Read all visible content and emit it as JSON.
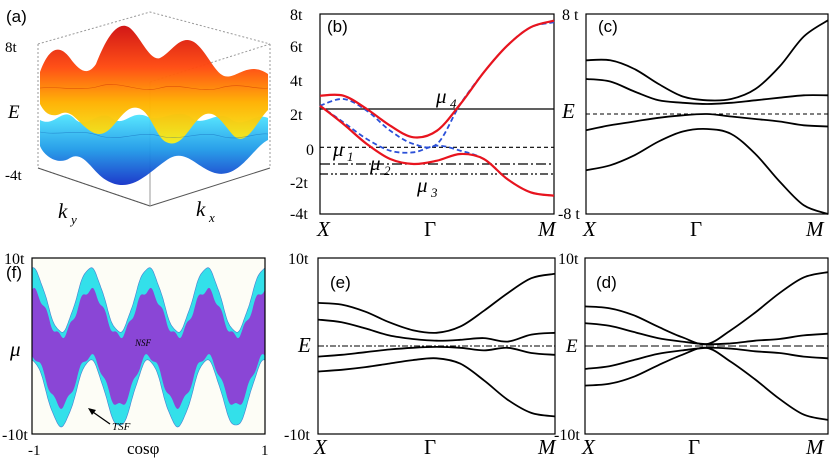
{
  "panels": {
    "a": {
      "label": "(a)",
      "ytick_top": "8t",
      "ytick_bottom": "-4t",
      "ylabel": "E",
      "xlabel_left": "k",
      "xlabel_left_sub": "y",
      "xlabel_right": "k",
      "xlabel_right_sub": "x"
    },
    "b": {
      "label": "(b)",
      "yticks": [
        "8t",
        "6t",
        "4t",
        "2t",
        "0",
        "-2t",
        "-4t"
      ],
      "xticks": [
        "X",
        "Γ",
        "M"
      ],
      "annotations": {
        "mu1": "μ",
        "mu1_sub": "1",
        "mu2": "μ",
        "mu2_sub": "2",
        "mu3": "μ",
        "mu3_sub": "3",
        "mu4": "μ",
        "mu4_sub": "4"
      }
    },
    "c": {
      "label": "(c)",
      "ytick_top": "8 t",
      "ytick_bottom": "-8 t",
      "ylabel": "E",
      "xticks": [
        "X",
        "Γ",
        "M"
      ]
    },
    "d": {
      "label": "(d)",
      "ytick_top": "10t",
      "ytick_bottom": "-10t",
      "ylabel": "E",
      "xticks": [
        "X",
        "Γ",
        "M"
      ]
    },
    "e": {
      "label": "(e)",
      "ytick_top": "10t",
      "ytick_bottom": "-10t",
      "ylabel": "E",
      "xticks": [
        "X",
        "Γ",
        "M"
      ]
    },
    "f": {
      "label": "(f)",
      "ytick_top": "10t",
      "ytick_bottom": "-10t",
      "ylabel": "μ",
      "xticks": [
        "-1",
        "cosφ",
        "1"
      ],
      "region_nsf": "NSF",
      "region_tsf": "TSF"
    }
  },
  "colors": {
    "band_red": "#e8141e",
    "band_blue": "#2b50d8",
    "tsf_cyan": "#33e0ea",
    "nsf_purple": "#8a46d6"
  },
  "chart_data": [
    {
      "panel": "b",
      "type": "line",
      "x_ticks": [
        "X",
        "Γ",
        "M"
      ],
      "ylim": [
        -4,
        8
      ],
      "yticks": [
        8,
        6,
        4,
        2,
        0,
        -2,
        -4
      ],
      "series": [
        {
          "name": "red upper",
          "x": [
            0,
            0.1,
            0.2,
            0.3,
            0.4,
            0.5,
            0.6,
            0.7,
            0.8,
            0.9,
            1.0
          ],
          "values": [
            3.1,
            3.1,
            2.3,
            1.3,
            0.6,
            1.0,
            2.6,
            4.5,
            6.1,
            7.2,
            7.6
          ]
        },
        {
          "name": "red lower",
          "x": [
            0,
            0.1,
            0.2,
            0.3,
            0.4,
            0.5,
            0.6,
            0.7,
            0.8,
            0.9,
            1.0
          ],
          "values": [
            2.5,
            1.4,
            0.2,
            -0.7,
            -1.0,
            -0.8,
            -0.4,
            -0.7,
            -1.9,
            -2.7,
            -2.9
          ]
        },
        {
          "name": "blue dashed upper",
          "x": [
            0,
            0.1,
            0.2,
            0.3,
            0.4,
            0.5,
            0.6,
            0.7,
            0.8,
            0.9,
            1.0
          ],
          "values": [
            2.5,
            2.9,
            2.2,
            1.0,
            0.2,
            0.2,
            2.6,
            4.5,
            6.1,
            7.2,
            7.5
          ]
        },
        {
          "name": "blue dashed lower",
          "x": [
            0,
            0.1,
            0.2,
            0.3,
            0.4,
            0.5,
            0.6,
            0.7,
            0.8,
            0.9,
            1.0
          ],
          "values": [
            2.5,
            1.5,
            0.5,
            -0.2,
            -0.3,
            0.1,
            -0.2,
            -0.7,
            -1.9,
            -2.7,
            -2.9
          ]
        }
      ],
      "levels": [
        {
          "name": "μ4",
          "value": 2.3,
          "style": "solid"
        },
        {
          "name": "μ1",
          "value": 0.0,
          "style": "dashed"
        },
        {
          "name": "μ2",
          "value": -1.0,
          "style": "dash-dot"
        },
        {
          "name": "μ3",
          "value": -1.6,
          "style": "dash-dot-dot"
        }
      ]
    },
    {
      "panel": "c",
      "type": "line",
      "x_ticks": [
        "X",
        "Γ",
        "M"
      ],
      "ylim": [
        -8,
        8
      ],
      "reference_line": 0,
      "series": [
        {
          "name": "band 1",
          "x": [
            0,
            0.1,
            0.2,
            0.3,
            0.4,
            0.5,
            0.6,
            0.7,
            0.8,
            0.9,
            1.0
          ],
          "values": [
            4.3,
            4.3,
            3.6,
            2.4,
            1.4,
            1.1,
            1.2,
            2.0,
            3.8,
            6.2,
            7.5
          ]
        },
        {
          "name": "band 2",
          "x": [
            0,
            0.1,
            0.2,
            0.3,
            0.4,
            0.5,
            0.6,
            0.7,
            0.8,
            0.9,
            1.0
          ],
          "values": [
            2.8,
            2.6,
            1.8,
            1.1,
            0.9,
            0.8,
            0.9,
            1.1,
            1.3,
            1.5,
            1.5
          ]
        },
        {
          "name": "band 3",
          "x": [
            0,
            0.1,
            0.2,
            0.3,
            0.4,
            0.5,
            0.6,
            0.7,
            0.8,
            0.9,
            1.0
          ],
          "values": [
            -1.3,
            -0.9,
            -0.6,
            -0.3,
            -0.1,
            0.0,
            -0.2,
            -0.4,
            -0.6,
            -0.9,
            -1.0
          ]
        },
        {
          "name": "band 4",
          "x": [
            0,
            0.1,
            0.2,
            0.3,
            0.4,
            0.5,
            0.6,
            0.7,
            0.8,
            0.9,
            1.0
          ],
          "values": [
            -4.5,
            -4.1,
            -3.3,
            -2.2,
            -1.4,
            -1.2,
            -1.6,
            -3.2,
            -5.4,
            -7.3,
            -8.0
          ]
        }
      ]
    },
    {
      "panel": "d",
      "type": "line",
      "x_ticks": [
        "X",
        "Γ",
        "M"
      ],
      "ylim": [
        -10,
        10
      ],
      "reference_line": 0,
      "series": [
        {
          "name": "band 1",
          "x": [
            0,
            0.1,
            0.2,
            0.3,
            0.4,
            0.5,
            0.6,
            0.7,
            0.8,
            0.9,
            1.0
          ],
          "values": [
            4.5,
            4.3,
            3.5,
            2.2,
            1.0,
            0.2,
            1.8,
            3.8,
            6.0,
            7.8,
            8.4
          ]
        },
        {
          "name": "band 2",
          "x": [
            0,
            0.1,
            0.2,
            0.3,
            0.4,
            0.5,
            0.6,
            0.7,
            0.8,
            0.9,
            1.0
          ],
          "values": [
            2.6,
            2.3,
            1.6,
            0.9,
            0.5,
            0.2,
            0.3,
            0.6,
            0.8,
            1.2,
            1.4
          ]
        },
        {
          "name": "band 3",
          "x": [
            0,
            0.1,
            0.2,
            0.3,
            0.4,
            0.5,
            0.6,
            0.7,
            0.8,
            0.9,
            1.0
          ],
          "values": [
            -2.6,
            -2.3,
            -1.6,
            -0.9,
            -0.5,
            -0.2,
            -0.3,
            -0.6,
            -0.8,
            -1.2,
            -1.4
          ]
        },
        {
          "name": "band 4",
          "x": [
            0,
            0.1,
            0.2,
            0.3,
            0.4,
            0.5,
            0.6,
            0.7,
            0.8,
            0.9,
            1.0
          ],
          "values": [
            -4.5,
            -4.3,
            -3.5,
            -2.2,
            -1.0,
            -0.2,
            -1.8,
            -3.8,
            -6.0,
            -7.8,
            -8.4
          ]
        }
      ]
    },
    {
      "panel": "e",
      "type": "line",
      "x_ticks": [
        "X",
        "Γ",
        "M"
      ],
      "ylim": [
        -10,
        10
      ],
      "reference_line": 0,
      "series": [
        {
          "name": "band 1",
          "x": [
            0,
            0.1,
            0.2,
            0.3,
            0.4,
            0.5,
            0.6,
            0.7,
            0.8,
            0.9,
            1.0
          ],
          "values": [
            4.9,
            4.7,
            3.9,
            2.7,
            1.8,
            1.5,
            2.2,
            4.0,
            6.0,
            7.7,
            8.2
          ]
        },
        {
          "name": "band 2",
          "x": [
            0,
            0.1,
            0.2,
            0.3,
            0.4,
            0.5,
            0.6,
            0.7,
            0.8,
            0.9,
            1.0
          ],
          "values": [
            3.0,
            2.7,
            2.0,
            1.2,
            0.8,
            0.6,
            0.7,
            0.9,
            0.5,
            1.3,
            1.5
          ]
        },
        {
          "name": "band 3",
          "x": [
            0,
            0.1,
            0.2,
            0.3,
            0.4,
            0.5,
            0.6,
            0.7,
            0.8,
            0.9,
            1.0
          ],
          "values": [
            -1.2,
            -1.0,
            -0.7,
            -0.4,
            -0.2,
            -0.1,
            -0.2,
            -0.5,
            -0.2,
            -0.8,
            -1.0
          ]
        },
        {
          "name": "band 4",
          "x": [
            0,
            0.1,
            0.2,
            0.3,
            0.4,
            0.5,
            0.6,
            0.7,
            0.8,
            0.9,
            1.0
          ],
          "values": [
            -2.9,
            -2.7,
            -2.4,
            -2.0,
            -1.6,
            -1.4,
            -2.0,
            -3.9,
            -6.1,
            -7.6,
            -8.0
          ]
        }
      ]
    },
    {
      "panel": "f",
      "type": "area",
      "x_range": [
        -1,
        1
      ],
      "ylim": [
        -10,
        10
      ],
      "regions": [
        {
          "name": "TSF",
          "color": "cyan"
        },
        {
          "name": "NSF",
          "color": "purple"
        }
      ]
    }
  ]
}
